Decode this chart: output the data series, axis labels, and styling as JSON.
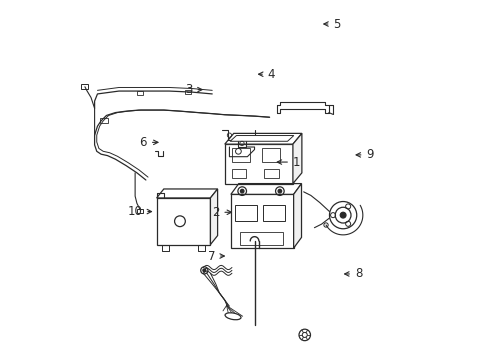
{
  "bg_color": "#ffffff",
  "line_color": "#2a2a2a",
  "lw": 0.9,
  "figsize": [
    4.89,
    3.6
  ],
  "dpi": 100,
  "labels": {
    "1": [
      0.635,
      0.45,
      0.58,
      0.45
    ],
    "2": [
      0.43,
      0.59,
      0.475,
      0.59
    ],
    "3": [
      0.355,
      0.248,
      0.393,
      0.248
    ],
    "4": [
      0.565,
      0.205,
      0.528,
      0.205
    ],
    "5": [
      0.748,
      0.065,
      0.71,
      0.065
    ],
    "6": [
      0.228,
      0.395,
      0.27,
      0.395
    ],
    "7": [
      0.418,
      0.712,
      0.455,
      0.712
    ],
    "8": [
      0.808,
      0.762,
      0.768,
      0.762
    ],
    "9": [
      0.84,
      0.43,
      0.8,
      0.43
    ],
    "10": [
      0.215,
      0.588,
      0.252,
      0.588
    ]
  }
}
